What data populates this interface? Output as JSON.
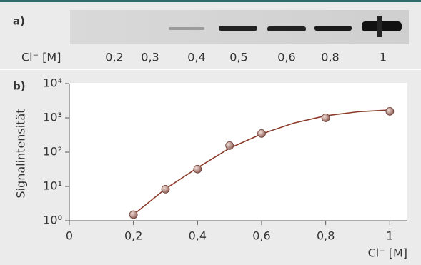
{
  "chart_data": {
    "type": "scatter",
    "gel": {
      "label": "a)",
      "axis_label": "Cl⁻ [M]",
      "lanes": [
        "0,2",
        "0,3",
        "0,4",
        "0,5",
        "0,6",
        "0,8",
        "1"
      ]
    },
    "panel_label": "b)",
    "y_label": "Signalintensität",
    "x_label": "Cl⁻ [M]",
    "log_y": true,
    "xlim": [
      0,
      1.055
    ],
    "ylim": [
      1,
      10000
    ],
    "xticks": [
      0,
      {
        "value": 0.2,
        "label": "0,2"
      },
      {
        "value": 0.4,
        "label": "0,4"
      },
      {
        "value": 0.6,
        "label": "0,6"
      },
      {
        "value": 0.8,
        "label": "0,8"
      },
      1
    ],
    "yticks": [
      {
        "value": 1,
        "label": "10⁰"
      },
      {
        "value": 10,
        "label": "10¹"
      },
      {
        "value": 100,
        "label": "10²"
      },
      {
        "value": 1000,
        "label": "10³"
      },
      {
        "value": 10000,
        "label": "10⁴"
      }
    ],
    "points": {
      "color": "#b8877d",
      "x": [
        0.2,
        0.3,
        0.4,
        0.5,
        0.6,
        0.8,
        1.0
      ],
      "values": [
        1.5,
        8.3,
        32,
        155,
        350,
        1000,
        1550
      ]
    },
    "curve": {
      "color": "#8b3a2a",
      "x": [
        0.2,
        0.3,
        0.4,
        0.5,
        0.6,
        0.7,
        0.8,
        0.9,
        1.0
      ],
      "values": [
        1.5,
        8.5,
        35,
        130,
        340,
        700,
        1150,
        1500,
        1700
      ]
    }
  }
}
